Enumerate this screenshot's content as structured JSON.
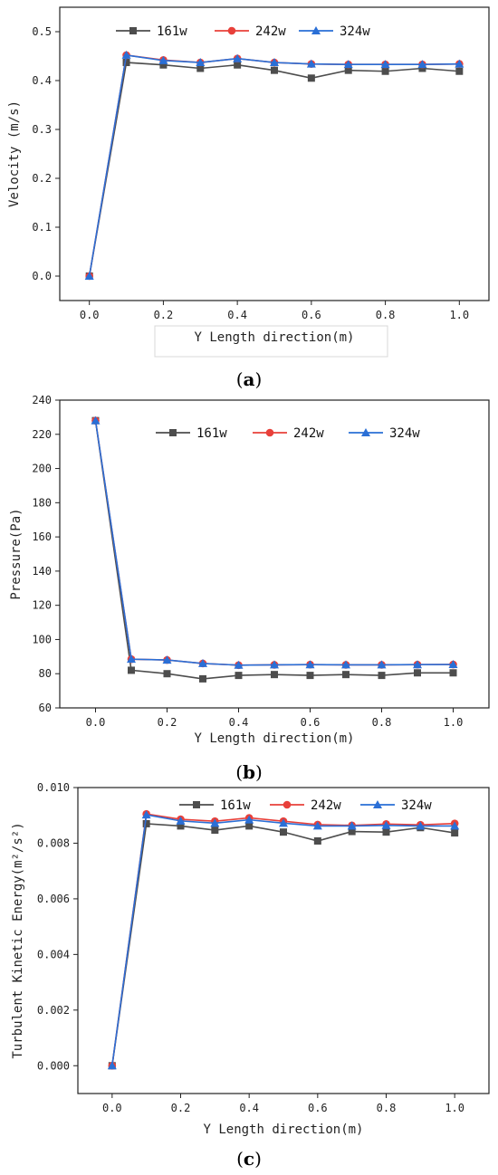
{
  "colors": {
    "s161": "#4d4d4d",
    "s242": "#e8403a",
    "s324": "#2a6fd6"
  },
  "panels": [
    {
      "id": "a",
      "label_open": "(",
      "label_letter": "a",
      "label_close": ")"
    },
    {
      "id": "b",
      "label_open": "(",
      "label_letter": "b",
      "label_close": ")"
    },
    {
      "id": "c",
      "label_open": "(",
      "label_letter": "c",
      "label_close": ")"
    }
  ],
  "chart_data": [
    {
      "type": "line",
      "title": "",
      "xlabel": "Y Length direction(m)",
      "ylabel": "Velocity (m/s)",
      "xlim": [
        -0.08,
        1.08
      ],
      "ylim": [
        -0.05,
        0.55
      ],
      "xticks": [
        0.0,
        0.2,
        0.4,
        0.6,
        0.8,
        1.0
      ],
      "xtick_labels": [
        "0.0",
        "0.2",
        "0.4",
        "0.6",
        "0.8",
        "1.0"
      ],
      "yticks": [
        0.0,
        0.1,
        0.2,
        0.3,
        0.4,
        0.5
      ],
      "ytick_labels": [
        "0.0",
        "0.1",
        "0.2",
        "0.3",
        "0.4",
        "0.5"
      ],
      "x": [
        0.0,
        0.1,
        0.2,
        0.3,
        0.4,
        0.5,
        0.6,
        0.7,
        0.8,
        0.9,
        1.0
      ],
      "legend_position": "top-right",
      "series": [
        {
          "name": "161w",
          "marker": "square",
          "color": "#4d4d4d",
          "values": [
            0.0,
            0.437,
            0.432,
            0.425,
            0.432,
            0.421,
            0.405,
            0.421,
            0.419,
            0.425,
            0.419
          ]
        },
        {
          "name": "242w",
          "marker": "circle",
          "color": "#e8403a",
          "values": [
            0.0,
            0.452,
            0.442,
            0.437,
            0.445,
            0.437,
            0.434,
            0.433,
            0.433,
            0.433,
            0.434
          ]
        },
        {
          "name": "324w",
          "marker": "triangle",
          "color": "#2a6fd6",
          "values": [
            0.0,
            0.452,
            0.441,
            0.437,
            0.445,
            0.437,
            0.434,
            0.433,
            0.433,
            0.433,
            0.434
          ]
        }
      ]
    },
    {
      "type": "line",
      "title": "",
      "xlabel": "Y Length direction(m)",
      "ylabel": "Pressure(Pa)",
      "xlim": [
        -0.1,
        1.1
      ],
      "ylim": [
        60,
        240
      ],
      "xticks": [
        0.0,
        0.2,
        0.4,
        0.6,
        0.8,
        1.0
      ],
      "xtick_labels": [
        "0.0",
        "0.2",
        "0.4",
        "0.6",
        "0.8",
        "1.0"
      ],
      "yticks": [
        60,
        80,
        100,
        120,
        140,
        160,
        180,
        200,
        220,
        240
      ],
      "ytick_labels": [
        "60",
        "80",
        "100",
        "120",
        "140",
        "160",
        "180",
        "200",
        "220",
        "240"
      ],
      "x": [
        0.0,
        0.1,
        0.2,
        0.3,
        0.4,
        0.5,
        0.6,
        0.7,
        0.8,
        0.9,
        1.0
      ],
      "legend_position": "top-right",
      "series": [
        {
          "name": "161w",
          "marker": "square",
          "color": "#4d4d4d",
          "values": [
            228,
            82,
            80,
            77,
            79,
            79.5,
            79,
            79.5,
            79,
            80.5,
            80.5
          ]
        },
        {
          "name": "242w",
          "marker": "circle",
          "color": "#e8403a",
          "values": [
            228,
            88.5,
            88,
            86,
            85,
            85.2,
            85.3,
            85.2,
            85.2,
            85.3,
            85.4
          ]
        },
        {
          "name": "324w",
          "marker": "triangle",
          "color": "#2a6fd6",
          "values": [
            228,
            88.5,
            88,
            86,
            85,
            85.2,
            85.3,
            85.2,
            85.2,
            85.3,
            85.4
          ]
        }
      ]
    },
    {
      "type": "line",
      "title": "",
      "xlabel": "Y Length direction(m)",
      "ylabel": "Turbulent Kinetic Energy(m²/s²)",
      "xlim": [
        -0.1,
        1.1
      ],
      "ylim": [
        -0.001,
        0.01
      ],
      "xticks": [
        0.0,
        0.2,
        0.4,
        0.6,
        0.8,
        1.0
      ],
      "xtick_labels": [
        "0.0",
        "0.2",
        "0.4",
        "0.6",
        "0.8",
        "1.0"
      ],
      "yticks": [
        0.0,
        0.002,
        0.004,
        0.006,
        0.008,
        0.01
      ],
      "ytick_labels": [
        "0.000",
        "0.002",
        "0.004",
        "0.006",
        "0.008",
        "0.010"
      ],
      "x": [
        0.0,
        0.1,
        0.2,
        0.3,
        0.4,
        0.5,
        0.6,
        0.7,
        0.8,
        0.9,
        1.0
      ],
      "legend_position": "top-right",
      "series": [
        {
          "name": "161w",
          "marker": "square",
          "color": "#4d4d4d",
          "values": [
            0.0,
            0.0087,
            0.00862,
            0.00847,
            0.00862,
            0.0084,
            0.00808,
            0.00842,
            0.0084,
            0.00856,
            0.00837
          ]
        },
        {
          "name": "242w",
          "marker": "circle",
          "color": "#e8403a",
          "values": [
            0.0,
            0.00905,
            0.00886,
            0.00879,
            0.00891,
            0.00879,
            0.00867,
            0.00864,
            0.00869,
            0.00866,
            0.00871
          ]
        },
        {
          "name": "324w",
          "marker": "triangle",
          "color": "#2a6fd6",
          "values": [
            0.0,
            0.00902,
            0.0088,
            0.00872,
            0.00884,
            0.00872,
            0.00862,
            0.00862,
            0.00864,
            0.00862,
            0.00862
          ]
        }
      ]
    }
  ]
}
